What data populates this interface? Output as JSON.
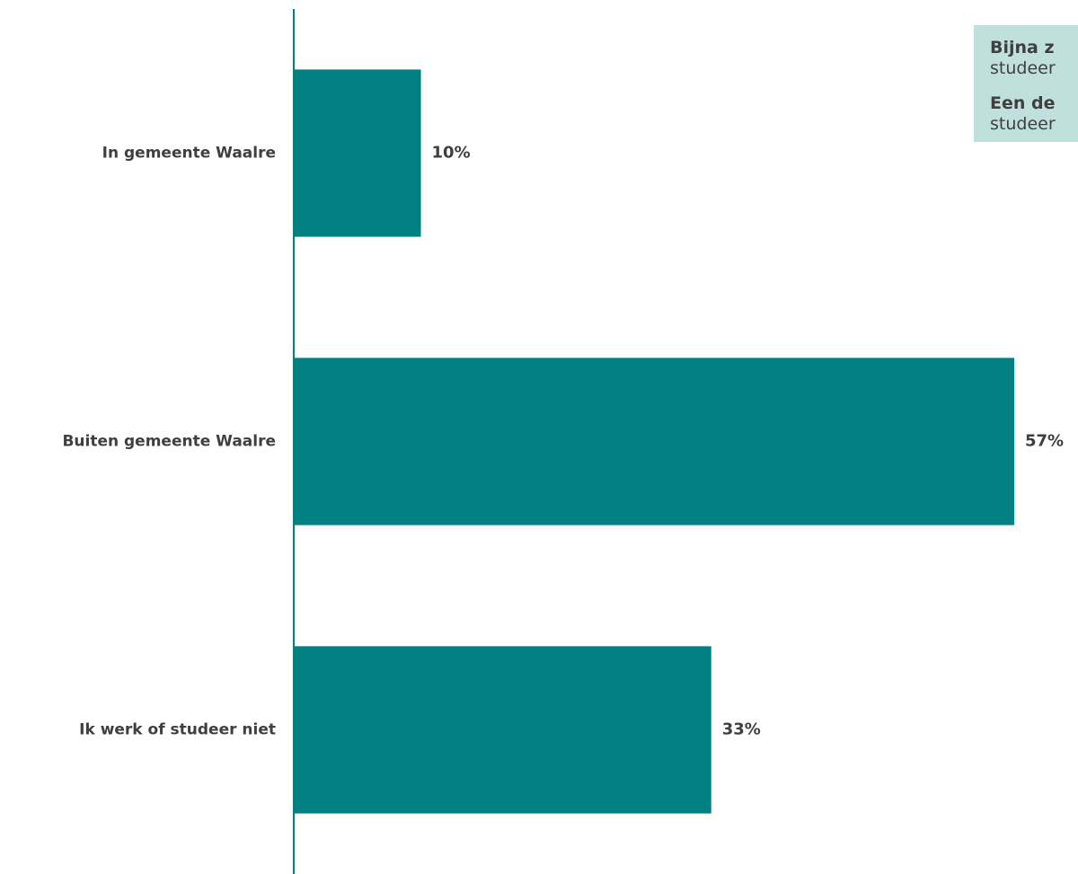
{
  "chart_data": {
    "type": "bar",
    "orientation": "horizontal",
    "categories": [
      "In gemeente Waalre",
      "Buiten gemeente Waalre",
      "Ik werk of studeer niet"
    ],
    "values": [
      10,
      57,
      33
    ],
    "value_labels": [
      "10%",
      "57%",
      "33%"
    ],
    "unit": "%",
    "xlim": [
      0,
      57
    ],
    "grid": false,
    "bar_color": "#008080"
  },
  "callout": {
    "line1_bold": "Bijna z",
    "line1_rest": "studeer",
    "line2_bold": "Een de",
    "line2_rest": "studeer"
  },
  "colors": {
    "bar": "#008080",
    "axis": "#008080",
    "text": "#3f3f3f",
    "callout_bg": "#bfe0dd"
  }
}
